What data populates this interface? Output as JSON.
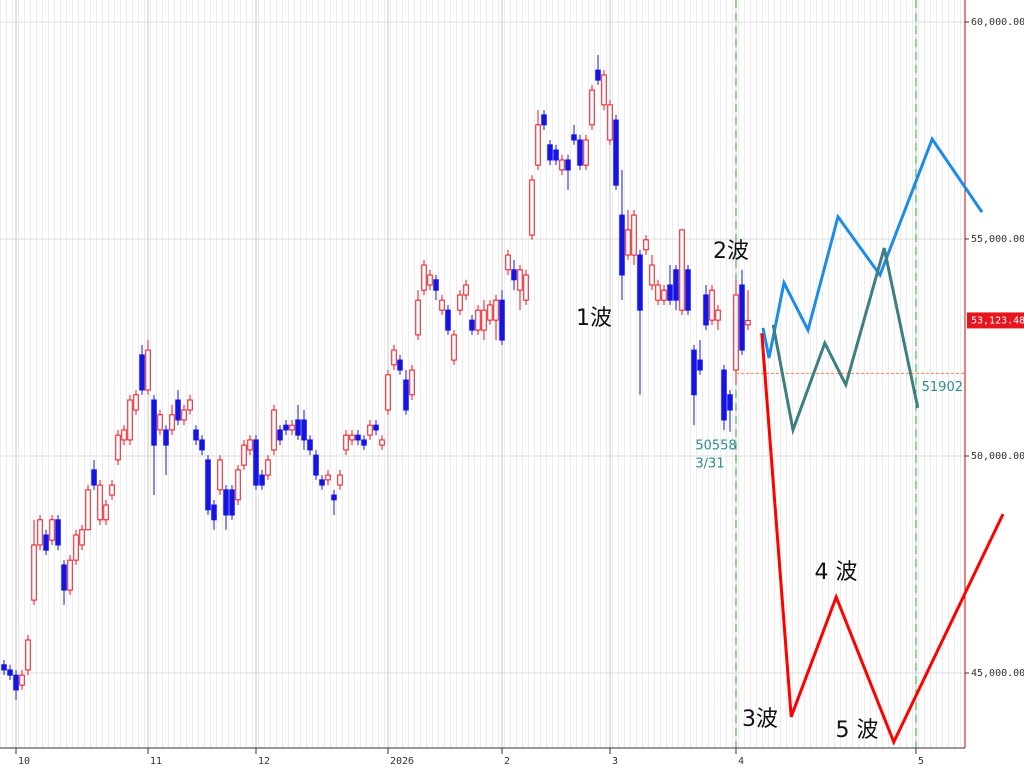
{
  "chart_data": {
    "type": "candlestick",
    "x": [
      0,
      1,
      2,
      3,
      4,
      5,
      6,
      7,
      8,
      9,
      10,
      11,
      12,
      13,
      14,
      15,
      16,
      17,
      18,
      19,
      20,
      21,
      22,
      23,
      24,
      25,
      26,
      27,
      28,
      29,
      30,
      31,
      32,
      33,
      34,
      35,
      36,
      37,
      38,
      39,
      40,
      41,
      42,
      43,
      44,
      45,
      46,
      47,
      48,
      49,
      50,
      51,
      52,
      53,
      54,
      55,
      56,
      57,
      58,
      59,
      60,
      61,
      62,
      63,
      64,
      65,
      66,
      67,
      68,
      69,
      70,
      71,
      72,
      73,
      74,
      75,
      76,
      77,
      78,
      79,
      80,
      81,
      82,
      83,
      84,
      85,
      86,
      87,
      88,
      89,
      90,
      91,
      92,
      93,
      94,
      95,
      96,
      97,
      98,
      99,
      100,
      101,
      102,
      103,
      104,
      105,
      106,
      107,
      108,
      109,
      110,
      111,
      112,
      113,
      114,
      115,
      116,
      117,
      118,
      119,
      120,
      121,
      122,
      123,
      124
    ],
    "open": [
      45190,
      45070,
      44950,
      44720,
      45070,
      46680,
      47950,
      48180,
      48060,
      48530,
      47490,
      46910,
      47600,
      47950,
      48300,
      49680,
      48530,
      48530,
      49100,
      49910,
      50370,
      50370,
      51060,
      52330,
      51520,
      51290,
      50600,
      50600,
      50600,
      51290,
      50830,
      51060,
      50600,
      50370,
      49910,
      48870,
      49220,
      49220,
      49220,
      48990,
      49790,
      50140,
      50370,
      49560,
      49560,
      50140,
      50600,
      50710,
      50600,
      50830,
      50830,
      50370,
      50020,
      49450,
      49450,
      49100,
      49330,
      50140,
      50370,
      50480,
      50370,
      50480,
      50710,
      50250,
      51060,
      52100,
      52210,
      51750,
      51410,
      52790,
      53820,
      53940,
      54060,
      53360,
      53360,
      52210,
      53360,
      53710,
      53130,
      52900,
      52900,
      53130,
      53130,
      53590,
      54290,
      54290,
      53820,
      53590,
      55090,
      56700,
      57860,
      57170,
      57050,
      56590,
      56820,
      57400,
      57280,
      56700,
      57630,
      58890,
      58090,
      57280,
      57740,
      55550,
      54630,
      54630,
      54630,
      54750,
      53940,
      53590,
      53590,
      53940,
      54290,
      53360,
      54290,
      52440,
      52210,
      53710,
      53130,
      53130,
      51980,
      51410,
      51980,
      53940,
      53020
    ],
    "high": [
      45300,
      45190,
      45070,
      45070,
      45880,
      48530,
      48640,
      48300,
      48640,
      48640,
      47600,
      47720,
      48300,
      48410,
      49330,
      49910,
      49450,
      48990,
      49450,
      50600,
      50710,
      51410,
      51520,
      52560,
      52670,
      51410,
      51060,
      50710,
      51180,
      51520,
      51180,
      51410,
      50710,
      50480,
      50020,
      48990,
      50020,
      49330,
      49330,
      49790,
      50370,
      50480,
      50480,
      49680,
      50020,
      51180,
      50710,
      50830,
      50830,
      51180,
      51060,
      50480,
      50140,
      49560,
      49680,
      49220,
      49680,
      50600,
      50600,
      50600,
      50480,
      50830,
      50830,
      50480,
      51980,
      52560,
      52330,
      51980,
      52100,
      53820,
      54520,
      54290,
      54170,
      53710,
      53480,
      52900,
      53820,
      54060,
      53250,
      53480,
      53590,
      53590,
      53710,
      53820,
      54750,
      54520,
      54400,
      54290,
      56470,
      57970,
      57970,
      57280,
      57170,
      56940,
      56940,
      57630,
      57400,
      57400,
      58550,
      59240,
      58890,
      58200,
      57860,
      56590,
      55670,
      55670,
      54750,
      55090,
      54630,
      54060,
      53940,
      54400,
      54400,
      55210,
      54400,
      52560,
      52670,
      53940,
      53940,
      53480,
      52100,
      51520,
      54060,
      54290,
      53820
    ],
    "low": [
      44950,
      44840,
      44380,
      44610,
      44950,
      46570,
      47830,
      47720,
      47950,
      47830,
      46570,
      46800,
      47490,
      47830,
      48300,
      49220,
      48410,
      48410,
      48990,
      49790,
      50250,
      50250,
      50950,
      51410,
      51410,
      49100,
      50480,
      49560,
      50480,
      50710,
      50710,
      50950,
      50250,
      50020,
      48640,
      48300,
      49100,
      48300,
      48530,
      48870,
      49680,
      50020,
      49220,
      49220,
      49450,
      50020,
      50250,
      50480,
      50480,
      50370,
      50140,
      50020,
      49450,
      49220,
      49330,
      48640,
      49220,
      50020,
      50250,
      50250,
      50140,
      50370,
      50480,
      50140,
      50950,
      51980,
      51870,
      50950,
      51290,
      52670,
      53710,
      53820,
      53590,
      53250,
      52790,
      52100,
      53250,
      53590,
      52790,
      52790,
      52670,
      53020,
      52670,
      52560,
      54170,
      53820,
      53360,
      53480,
      54980,
      56590,
      57510,
      56700,
      56700,
      56470,
      56130,
      57170,
      56590,
      56590,
      57510,
      58550,
      57970,
      57170,
      56130,
      53590,
      54520,
      54400,
      51410,
      54630,
      53820,
      53480,
      53480,
      53480,
      53360,
      53250,
      53250,
      50710,
      51870,
      52900,
      53020,
      52900,
      50600,
      50558,
      51640,
      52330,
      52900
    ],
    "close": [
      45070,
      44950,
      44610,
      44950,
      45760,
      47950,
      48530,
      47830,
      48530,
      47950,
      46910,
      47600,
      48180,
      48300,
      49220,
      49330,
      49330,
      48870,
      49330,
      50480,
      50600,
      51290,
      51410,
      51520,
      52440,
      50250,
      50950,
      50250,
      50950,
      50830,
      51060,
      51290,
      50370,
      50140,
      48760,
      48530,
      49910,
      48640,
      48640,
      49680,
      50250,
      50370,
      49330,
      49330,
      49910,
      51060,
      50370,
      50600,
      50710,
      50480,
      50370,
      50140,
      49560,
      49330,
      49560,
      48990,
      49560,
      50480,
      50480,
      50370,
      50250,
      50710,
      50600,
      50370,
      51870,
      52440,
      51980,
      51060,
      51980,
      53590,
      54400,
      54170,
      53820,
      53590,
      52900,
      52790,
      53710,
      53940,
      52900,
      53360,
      53360,
      53480,
      53590,
      52670,
      54630,
      54060,
      54290,
      54170,
      56360,
      57630,
      57630,
      56820,
      56820,
      56820,
      56590,
      57280,
      56700,
      57280,
      58430,
      58660,
      58780,
      58090,
      56240,
      54170,
      55210,
      55550,
      53360,
      54980,
      54400,
      53940,
      53820,
      53590,
      53590,
      55210,
      53360,
      51410,
      51980,
      53020,
      53820,
      53360,
      50830,
      51060,
      53710,
      52440,
      53123.48
    ],
    "up_color": "#e8141e",
    "down_color": "#1414e6",
    "xlim": [
      -0.67,
      160.17
    ],
    "xticks": [
      {
        "value": 2,
        "label": "10"
      },
      {
        "value": 24,
        "label": "11"
      },
      {
        "value": 42,
        "label": "12"
      },
      {
        "value": 64,
        "label": "2026"
      },
      {
        "value": 83,
        "label": "2"
      },
      {
        "value": 101,
        "label": "3"
      },
      {
        "value": 122,
        "label": "4"
      },
      {
        "value": 152,
        "label": "5"
      }
    ],
    "ylim": [
      43272,
      60506
    ],
    "yticks": [
      {
        "value": 45000,
        "label": "45,000.00"
      },
      {
        "value": 50000,
        "label": "50,000.00"
      },
      {
        "value": 55000,
        "label": "55,000.00"
      },
      {
        "value": 60000,
        "label": "60,000.00"
      }
    ],
    "grid": true,
    "last_price": {
      "value": 53123.48,
      "label": "53,123.48",
      "color": "#e8141e"
    },
    "reference_line": {
      "value": 51902,
      "color": "#ff7f50"
    },
    "low_marker": {
      "value": 50558,
      "date": "3/31"
    },
    "series": [
      {
        "color": "#1e8ce6",
        "x": [
          126.5,
          127.5,
          130,
          134,
          139,
          146,
          154.7,
          163
        ],
        "values": [
          52950,
          52260,
          53990,
          52900,
          55510,
          54170,
          57300,
          55620
        ]
      },
      {
        "color": "#3d7f80",
        "x": [
          128.2,
          131.5,
          136.8,
          140.3,
          146.7,
          152.3
        ],
        "values": [
          53020,
          50600,
          52600,
          51640,
          54790,
          51110
        ]
      },
      {
        "color": "#ff0000",
        "x": [
          126.3,
          131.2,
          138.7,
          148.3,
          166.5
        ],
        "values": [
          52830,
          43990,
          46750,
          43410,
          48660
        ]
      }
    ],
    "annotations": [
      "1波",
      "2波",
      "3波",
      "4 波",
      "5 波"
    ]
  }
}
